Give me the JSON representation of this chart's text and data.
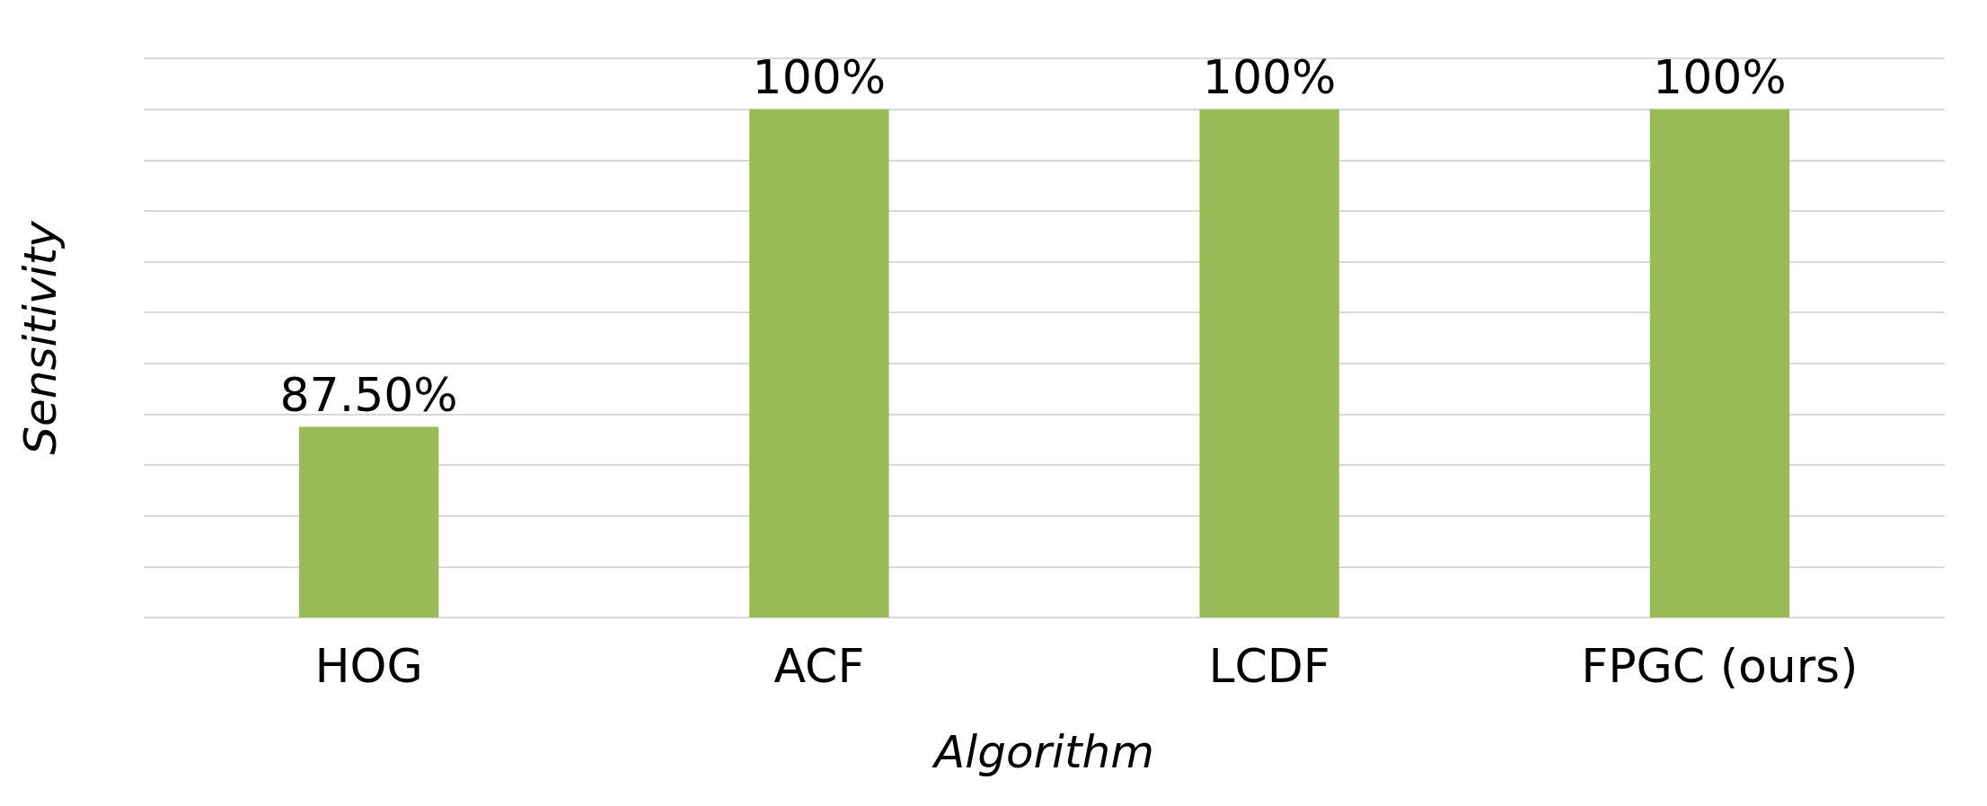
{
  "chart_data": {
    "type": "bar",
    "xlabel": "Algorithm",
    "ylabel": "Sensitivity",
    "categories": [
      "HOG",
      "ACF",
      "LCDF",
      "FPGC (ours)"
    ],
    "values": [
      87.5,
      100,
      100,
      100
    ],
    "color": "#9bbb59",
    "value_labels": [
      "87.50%",
      "100%",
      "100%",
      "100%"
    ],
    "ylim": [
      80,
      102
    ],
    "yticks": [
      {
        "value": 80,
        "label": null
      },
      {
        "value": 82,
        "label": null
      },
      {
        "value": 84,
        "label": null
      },
      {
        "value": 86,
        "label": null
      },
      {
        "value": 88,
        "label": null
      },
      {
        "value": 90,
        "label": null
      },
      {
        "value": 92,
        "label": null
      },
      {
        "value": 94,
        "label": null
      },
      {
        "value": 96,
        "label": null
      },
      {
        "value": 98,
        "label": null
      },
      {
        "value": 100,
        "label": null
      },
      {
        "value": 102,
        "label": null
      }
    ],
    "grid": "y",
    "tick_labels": "x"
  }
}
